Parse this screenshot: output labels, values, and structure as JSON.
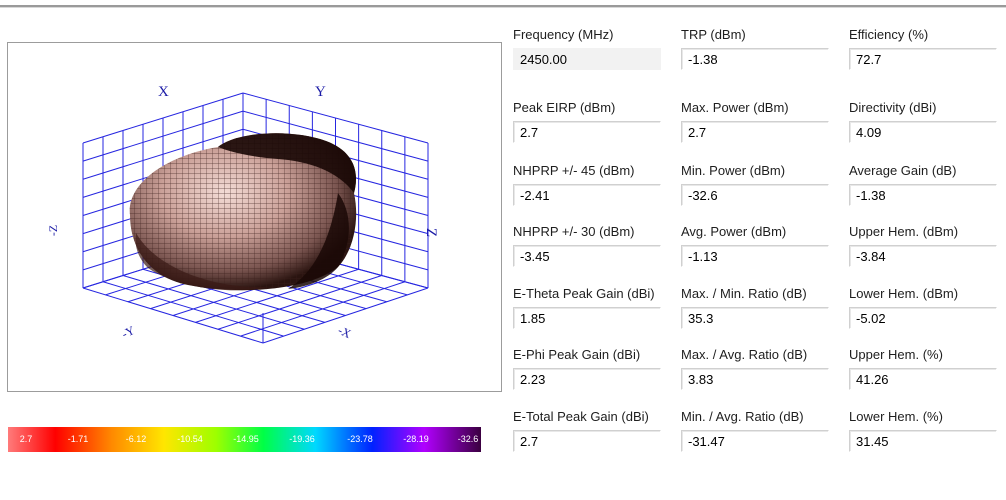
{
  "window": {
    "title": ""
  },
  "plot": {
    "axes": {
      "x": "X",
      "y": "Y",
      "z": "Z",
      "nx": "-X",
      "ny": "-Y",
      "nz": "-Z"
    },
    "colors": {
      "grid": "#2a2ae6",
      "body_light": "#e8c8c0",
      "body_mid": "#b88a80",
      "body_dark": "#1a0a08"
    }
  },
  "colorbar": {
    "labels": [
      "2.7",
      "-1.71",
      "-6.12",
      "-10.54",
      "-14.95",
      "-19.36",
      "-23.78",
      "-28.19",
      "-32.6"
    ]
  },
  "metrics": [
    [
      {
        "label": "Frequency (MHz)",
        "value": "2450.00"
      },
      {
        "label": "TRP (dBm)",
        "value": "-1.38"
      },
      {
        "label": "Efficiency (%)",
        "value": "72.7"
      }
    ],
    [
      {
        "label": "Peak EIRP (dBm)",
        "value": "2.7"
      },
      {
        "label": "Max. Power (dBm)",
        "value": "2.7"
      },
      {
        "label": "Directivity (dBi)",
        "value": "4.09"
      }
    ],
    [
      {
        "label": "NHPRP +/- 45 (dBm)",
        "value": "-2.41"
      },
      {
        "label": "Min. Power (dBm)",
        "value": "-32.6"
      },
      {
        "label": "Average Gain (dB)",
        "value": "-1.38"
      }
    ],
    [
      {
        "label": "NHPRP +/- 30 (dBm)",
        "value": "-3.45"
      },
      {
        "label": "Avg. Power (dBm)",
        "value": "-1.13"
      },
      {
        "label": "Upper Hem. (dBm)",
        "value": "-3.84"
      }
    ],
    [
      {
        "label": "E-Theta Peak Gain (dBi)",
        "value": "1.85"
      },
      {
        "label": "Max. / Min. Ratio (dB)",
        "value": "35.3"
      },
      {
        "label": "Lower Hem. (dBm)",
        "value": "-5.02"
      }
    ],
    [
      {
        "label": "E-Phi Peak Gain (dBi)",
        "value": "2.23"
      },
      {
        "label": "Max. / Avg. Ratio (dB)",
        "value": "3.83"
      },
      {
        "label": "Upper Hem. (%)",
        "value": "41.26"
      }
    ],
    [
      {
        "label": "E-Total Peak Gain (dBi)",
        "value": "2.7"
      },
      {
        "label": "Min. / Avg. Ratio (dB)",
        "value": "-31.47"
      },
      {
        "label": "Lower Hem. (%)",
        "value": "31.45"
      }
    ]
  ]
}
